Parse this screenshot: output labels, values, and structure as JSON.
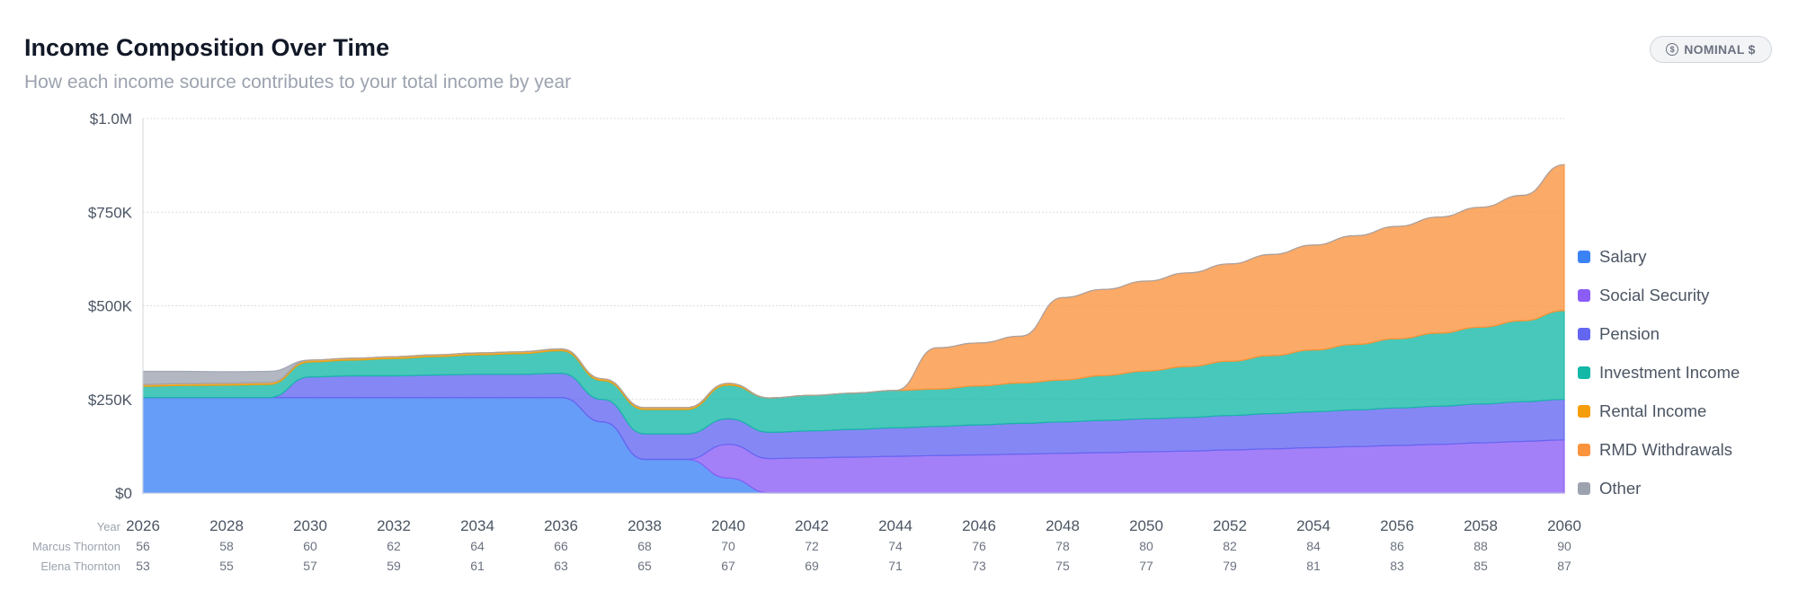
{
  "header": {
    "title": "Income Composition Over Time",
    "subtitle": "How each income source contributes to your total income by year",
    "badge_label": "NOMINAL $",
    "badge_icon": "dollar-coin-icon"
  },
  "chart_data": {
    "type": "area",
    "stacked": true,
    "ylim": [
      0,
      1000000
    ],
    "y_ticks": [
      {
        "value": 0,
        "label": "$0"
      },
      {
        "value": 250000,
        "label": "$250K"
      },
      {
        "value": 500000,
        "label": "$500K"
      },
      {
        "value": 750000,
        "label": "$750K"
      },
      {
        "value": 1000000,
        "label": "$1.0M"
      }
    ],
    "x": [
      2026,
      2027,
      2028,
      2029,
      2030,
      2031,
      2032,
      2033,
      2034,
      2035,
      2036,
      2037,
      2038,
      2039,
      2040,
      2041,
      2042,
      2043,
      2044,
      2045,
      2046,
      2047,
      2048,
      2049,
      2050,
      2051,
      2052,
      2053,
      2054,
      2055,
      2056,
      2057,
      2058,
      2059,
      2060
    ],
    "x_axis_label": "Year",
    "x_tick_labels": [
      "2026",
      "2028",
      "2030",
      "2032",
      "2034",
      "2036",
      "2038",
      "2040",
      "2042",
      "2044",
      "2046",
      "2048",
      "2050",
      "2052",
      "2054",
      "2056",
      "2058",
      "2060"
    ],
    "age_rows": [
      {
        "name": "Marcus Thornton",
        "ages": [
          "56",
          "58",
          "60",
          "62",
          "64",
          "66",
          "68",
          "70",
          "72",
          "74",
          "76",
          "78",
          "80",
          "82",
          "84",
          "86",
          "88",
          "90"
        ]
      },
      {
        "name": "Elena Thornton",
        "ages": [
          "53",
          "55",
          "57",
          "59",
          "61",
          "63",
          "65",
          "67",
          "69",
          "71",
          "73",
          "75",
          "77",
          "79",
          "81",
          "83",
          "85",
          "87"
        ]
      }
    ],
    "legend_position": "right",
    "grid": true,
    "series": [
      {
        "name": "Salary",
        "color": "#3b82f6",
        "values": [
          255000,
          255000,
          255000,
          255000,
          255000,
          255000,
          255000,
          255000,
          255000,
          255000,
          255000,
          190000,
          90000,
          90000,
          40000,
          0,
          0,
          0,
          0,
          0,
          0,
          0,
          0,
          0,
          0,
          0,
          0,
          0,
          0,
          0,
          0,
          0,
          0,
          0,
          0
        ]
      },
      {
        "name": "Social Security",
        "color": "#8b5cf6",
        "values": [
          0,
          0,
          0,
          0,
          0,
          0,
          0,
          0,
          0,
          0,
          0,
          0,
          0,
          0,
          90000,
          92000,
          94000,
          96000,
          98000,
          100000,
          102000,
          104000,
          106000,
          108000,
          110000,
          112000,
          115000,
          118000,
          121000,
          124000,
          127000,
          130000,
          134000,
          138000,
          142000
        ]
      },
      {
        "name": "Pension",
        "color": "#6366f1",
        "values": [
          0,
          0,
          0,
          0,
          55000,
          58000,
          58000,
          60000,
          62000,
          62000,
          65000,
          60000,
          68000,
          68000,
          68000,
          70000,
          72000,
          74000,
          76000,
          78000,
          80000,
          82000,
          84000,
          86000,
          88000,
          90000,
          92000,
          94000,
          96000,
          98000,
          100000,
          102000,
          104000,
          106000,
          108000
        ]
      },
      {
        "name": "Investment Income",
        "color": "#14b8a6",
        "values": [
          30000,
          32000,
          33000,
          35000,
          40000,
          42000,
          46000,
          49000,
          52000,
          55000,
          60000,
          50000,
          65000,
          65000,
          90000,
          92000,
          95000,
          97000,
          100000,
          100000,
          104000,
          108000,
          112000,
          120000,
          128000,
          136000,
          145000,
          155000,
          165000,
          175000,
          185000,
          195000,
          205000,
          216000,
          237000
        ]
      },
      {
        "name": "Rental Income",
        "color": "#f59e0b",
        "values": [
          5000,
          5000,
          5000,
          5000,
          5000,
          5000,
          5000,
          5000,
          5000,
          5000,
          5000,
          5000,
          5000,
          5000,
          5000,
          0,
          0,
          0,
          0,
          0,
          0,
          0,
          0,
          0,
          0,
          0,
          0,
          0,
          0,
          0,
          0,
          0,
          0,
          0,
          0
        ]
      },
      {
        "name": "RMD Withdrawals",
        "color": "#fb923c",
        "values": [
          0,
          0,
          0,
          0,
          0,
          0,
          0,
          0,
          0,
          0,
          0,
          0,
          0,
          0,
          0,
          0,
          0,
          0,
          0,
          110000,
          115000,
          125000,
          220000,
          230000,
          240000,
          250000,
          260000,
          270000,
          280000,
          290000,
          300000,
          310000,
          320000,
          335000,
          390000
        ]
      },
      {
        "name": "Other",
        "color": "#9ca3af",
        "values": [
          35000,
          33000,
          31000,
          30000,
          0,
          0,
          0,
          0,
          0,
          0,
          0,
          0,
          0,
          0,
          0,
          0,
          0,
          0,
          0,
          0,
          0,
          0,
          0,
          0,
          0,
          0,
          0,
          0,
          0,
          0,
          0,
          0,
          0,
          0,
          0
        ]
      }
    ]
  }
}
